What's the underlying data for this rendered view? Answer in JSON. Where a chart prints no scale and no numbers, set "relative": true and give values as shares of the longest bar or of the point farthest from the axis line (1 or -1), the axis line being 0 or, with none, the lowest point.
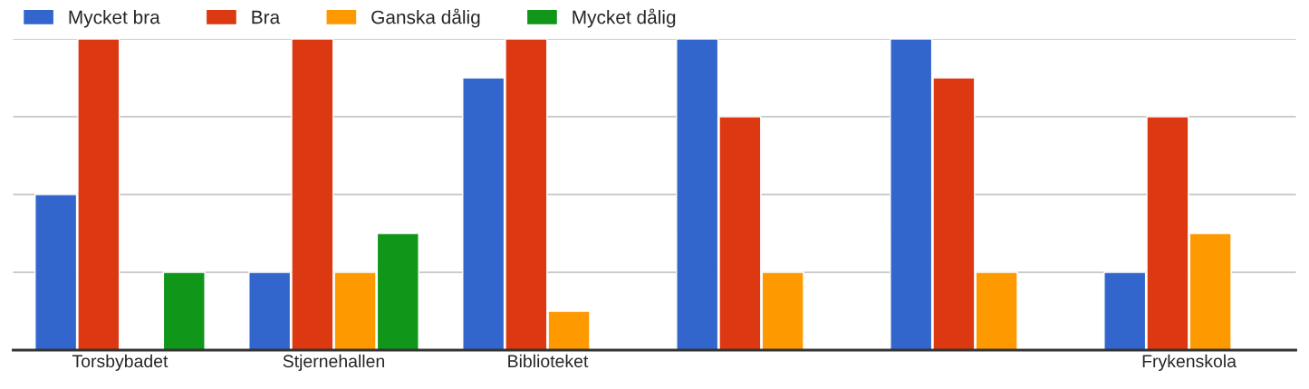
{
  "chart_data": {
    "type": "bar",
    "relative": true,
    "categories": [
      "Torsbybadet",
      "Stjernehallen",
      "Biblioteket",
      null,
      null,
      "Frykenskola"
    ],
    "series": [
      {
        "name": "Mycket bra",
        "color": "#3366cc",
        "values": [
          0.5,
          0.25,
          0.875,
          1,
          1,
          0.25
        ]
      },
      {
        "name": "Bra",
        "color": "#dc3912",
        "values": [
          1,
          1,
          1,
          0.75,
          0.875,
          0.75
        ]
      },
      {
        "name": "Ganska dålig",
        "color": "#ff9900",
        "values": [
          null,
          0.25,
          0.125,
          0.25,
          0.25,
          0.375
        ]
      },
      {
        "name": "Mycket dålig",
        "color": "#109618",
        "values": [
          0.25,
          0.375,
          null,
          null,
          null,
          null
        ]
      }
    ],
    "grid": "y",
    "legend": "top left"
  }
}
